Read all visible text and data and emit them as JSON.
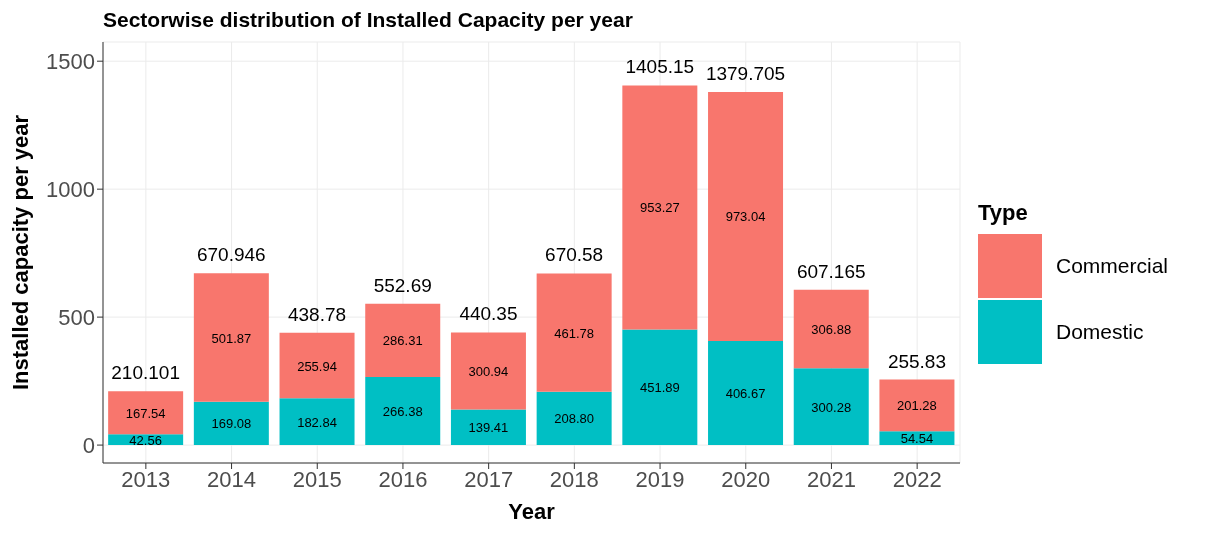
{
  "chart_data": {
    "type": "bar",
    "title": "Sectorwise distribution of Installed Capacity per year",
    "xlabel": "Year",
    "ylabel": "Installed capacity per year",
    "legend_title": "Type",
    "categories": [
      "2013",
      "2014",
      "2015",
      "2016",
      "2017",
      "2018",
      "2019",
      "2020",
      "2021",
      "2022"
    ],
    "series": [
      {
        "name": "Domestic",
        "color": "#00bfc4",
        "values": [
          42.56,
          169.076,
          182.84,
          266.38,
          139.41,
          208.8,
          451.89,
          406.6675,
          300.2825,
          54.54
        ],
        "value_labels": [
          "42.56",
          "169.08",
          "182.84",
          "266.38",
          "139.41",
          "208.80",
          "451.89",
          "406.67",
          "300.28",
          "54.54"
        ]
      },
      {
        "name": "Commercial",
        "color": "#f8766d",
        "values": [
          167.54,
          501.87,
          255.94,
          286.31,
          300.94,
          461.78,
          953.27,
          973.0375,
          306.8825,
          201.28
        ],
        "value_labels": [
          "167.54",
          "501.87",
          "255.94",
          "286.31",
          "300.94",
          "461.78",
          "953.27",
          "973.04",
          "306.88",
          "201.28"
        ]
      }
    ],
    "stacked": true,
    "totals": [
      "210.101",
      "670.946",
      "438.78",
      "552.69",
      "440.35",
      "670.58",
      "1405.15",
      "1379.705",
      "607.165",
      "255.83"
    ],
    "ylim": [
      -70,
      1575
    ],
    "yticks": [
      0,
      500,
      1000,
      1500
    ],
    "grid": true,
    "legend": "right"
  }
}
